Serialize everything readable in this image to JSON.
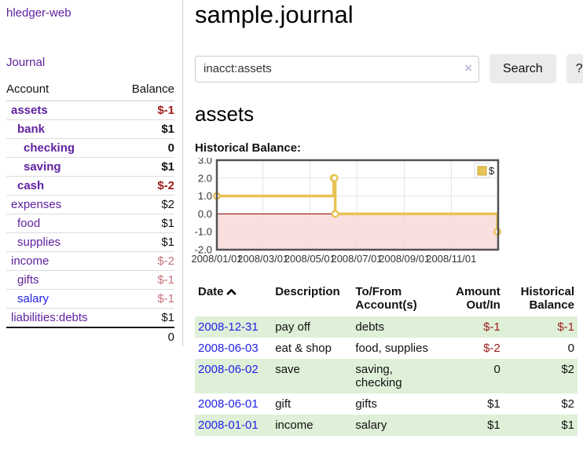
{
  "colors": {
    "brand_purple": "#5f219e",
    "link_blue": "#2121e8",
    "negative_dark": "#9e1b1b",
    "negative_soft": "#c4737c",
    "row_green": "#dff0d8",
    "button_gray": "#ebebeb"
  },
  "sidebar": {
    "brand": "hledger-web",
    "journal_link": "Journal",
    "table": {
      "header": {
        "account": "Account",
        "balance": "Balance"
      },
      "rows": [
        {
          "name": "assets",
          "depth": 1,
          "bold": true,
          "link": "purple",
          "balance": "$-1",
          "neg": "strong"
        },
        {
          "name": "bank",
          "depth": 2,
          "bold": true,
          "link": "purple",
          "balance": "$1",
          "neg": "none"
        },
        {
          "name": "checking",
          "depth": 3,
          "bold": true,
          "link": "purple",
          "balance": "0",
          "neg": "none"
        },
        {
          "name": "saving",
          "depth": 3,
          "bold": true,
          "link": "purple",
          "balance": "$1",
          "neg": "none"
        },
        {
          "name": "cash",
          "depth": 2,
          "bold": true,
          "link": "purple",
          "balance": "$-2",
          "neg": "strong"
        },
        {
          "name": "expenses",
          "depth": 1,
          "bold": false,
          "link": "purple",
          "balance": "$2",
          "neg": "none"
        },
        {
          "name": "food",
          "depth": 2,
          "bold": false,
          "link": "purple",
          "balance": "$1",
          "neg": "none"
        },
        {
          "name": "supplies",
          "depth": 2,
          "bold": false,
          "link": "purple",
          "balance": "$1",
          "neg": "none"
        },
        {
          "name": "income",
          "depth": 1,
          "bold": false,
          "link": "purple",
          "balance": "$-2",
          "neg": "soft"
        },
        {
          "name": "gifts",
          "depth": 2,
          "bold": false,
          "link": "purple",
          "balance": "$-1",
          "neg": "soft"
        },
        {
          "name": "salary",
          "depth": 2,
          "bold": false,
          "link": "blue",
          "balance": "$-1",
          "neg": "soft"
        },
        {
          "name": "liabilities:debts",
          "depth": 1,
          "bold": false,
          "link": "purple",
          "balance": "$1",
          "neg": "none"
        }
      ],
      "total": "0"
    }
  },
  "main": {
    "title": "sample.journal",
    "search": {
      "query": "inacct:assets",
      "clear_icon": "×",
      "search_button": "Search",
      "help_button": "?"
    },
    "account_heading": "assets",
    "chart_label": "Historical Balance:"
  },
  "chart_data": {
    "type": "line",
    "step": true,
    "title": "Historical Balance:",
    "series": [
      {
        "name": "$",
        "points": [
          [
            "2008-01-01",
            1
          ],
          [
            "2008-06-01",
            2
          ],
          [
            "2008-06-02",
            2
          ],
          [
            "2008-06-03",
            0
          ],
          [
            "2008-12-31",
            -1
          ]
        ]
      }
    ],
    "x_range": [
      "2008-01-01",
      "2009-01-01"
    ],
    "x_ticks": [
      "2008/01/01",
      "2008/03/01",
      "2008/05/01",
      "2008/07/01",
      "2008/09/01",
      "2008/11/01"
    ],
    "y_ticks": [
      "3.0",
      "2.0",
      "1.0",
      "0.0",
      "-1.0",
      "-2.0"
    ],
    "ylim": [
      -2,
      3
    ],
    "grid": true,
    "legend": {
      "label": "$",
      "position": "top-right"
    },
    "colors": {
      "line": "#e8c254",
      "line_edge": "#c9a437",
      "marker_fill": "#ffffff",
      "negative_region": "#f9d7d7",
      "zero_line": "#8b0000",
      "border": "#545454",
      "gridline": "#e4e4e4",
      "tick_text": "#333333"
    }
  },
  "register": {
    "columns": {
      "date": "Date",
      "sort_indicator": "ascending",
      "description": "Description",
      "accounts": "To/From Account(s)",
      "amount": "Amount Out/In",
      "balance": "Historical Balance"
    },
    "rows": [
      {
        "date": "2008-12-31",
        "description": "pay off",
        "accounts": "debts",
        "amount": "$-1",
        "amount_negative": true,
        "balance": "$-1",
        "balance_negative": true,
        "shaded": true
      },
      {
        "date": "2008-06-03",
        "description": "eat & shop",
        "accounts": "food, supplies",
        "amount": "$-2",
        "amount_negative": true,
        "balance": "0",
        "balance_negative": false,
        "shaded": false
      },
      {
        "date": "2008-06-02",
        "description": "save",
        "accounts": "saving, checking",
        "amount": "0",
        "amount_negative": false,
        "balance": "$2",
        "balance_negative": false,
        "shaded": true
      },
      {
        "date": "2008-06-01",
        "description": "gift",
        "accounts": "gifts",
        "amount": "$1",
        "amount_negative": false,
        "balance": "$2",
        "balance_negative": false,
        "shaded": false
      },
      {
        "date": "2008-01-01",
        "description": "income",
        "accounts": "salary",
        "amount": "$1",
        "amount_negative": false,
        "balance": "$1",
        "balance_negative": false,
        "shaded": true
      }
    ]
  }
}
